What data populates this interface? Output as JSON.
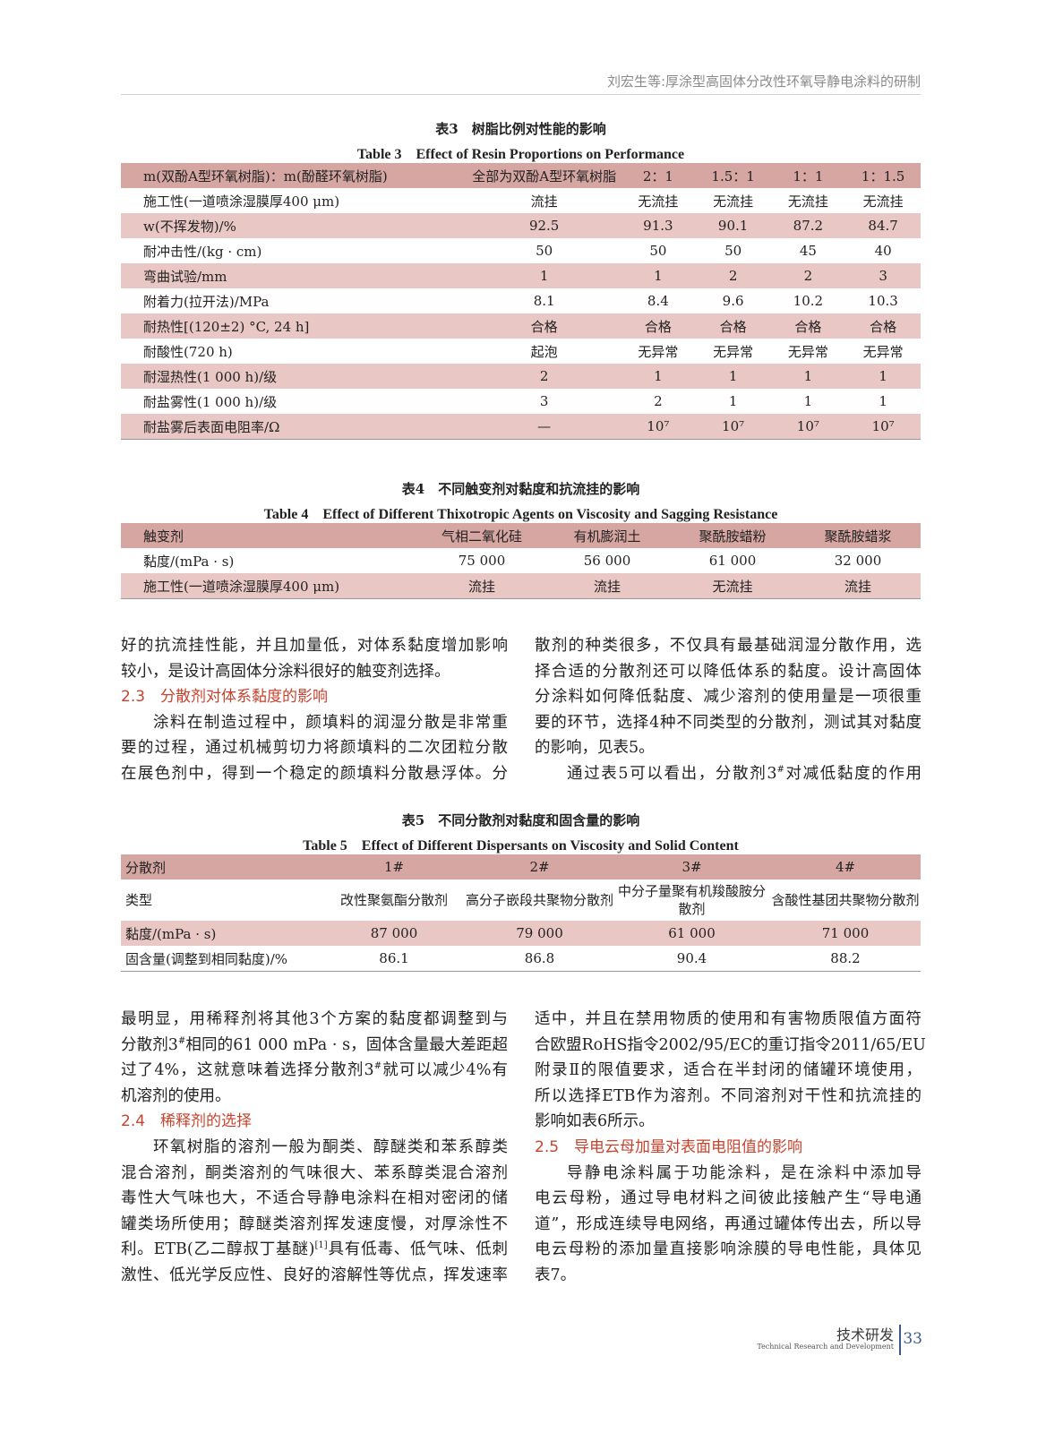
{
  "header": {
    "running_title": "刘宏生等:厚涂型高固体分改性环氧导静电涂料的研制"
  },
  "table3": {
    "title_zh": "表3　树脂比例对性能的影响",
    "title_en": "Table 3　Effect of Resin Proportions on Performance",
    "rows": [
      [
        "m(双酚A型环氧树脂)：m(酚醛环氧树脂)",
        "全部为双酚A型环氧树脂",
        "2：1",
        "1.5：1",
        "1：1",
        "1：1.5"
      ],
      [
        "施工性(一道喷涂湿膜厚400 μm)",
        "流挂",
        "无流挂",
        "无流挂",
        "无流挂",
        "无流挂"
      ],
      [
        "w(不挥发物)/%",
        "92.5",
        "91.3",
        "90.1",
        "87.2",
        "84.7"
      ],
      [
        "耐冲击性/(kg · cm)",
        "50",
        "50",
        "50",
        "45",
        "40"
      ],
      [
        "弯曲试验/mm",
        "1",
        "1",
        "2",
        "2",
        "3"
      ],
      [
        "附着力(拉开法)/MPa",
        "8.1",
        "8.4",
        "9.6",
        "10.2",
        "10.3"
      ],
      [
        "耐热性[(120±2) °C, 24 h]",
        "合格",
        "合格",
        "合格",
        "合格",
        "合格"
      ],
      [
        "耐酸性(720 h)",
        "起泡",
        "无异常",
        "无异常",
        "无异常",
        "无异常"
      ],
      [
        "耐湿热性(1 000 h)/级",
        "2",
        "1",
        "1",
        "1",
        "1"
      ],
      [
        "耐盐雾性(1 000 h)/级",
        "3",
        "2",
        "1",
        "1",
        "1"
      ],
      [
        "耐盐雾后表面电阻率/Ω",
        "—",
        "10⁷",
        "10⁷",
        "10⁷",
        "10⁷"
      ]
    ]
  },
  "table4": {
    "title_zh": "表4　不同触变剂对黏度和抗流挂的影响",
    "title_en": "Table 4　Effect of Different Thixotropic Agents on Viscosity and Sagging Resistance",
    "rows": [
      [
        "触变剂",
        "气相二氧化硅",
        "有机膨润土",
        "聚酰胺蜡粉",
        "聚酰胺蜡浆"
      ],
      [
        "黏度/(mPa · s)",
        "75 000",
        "56 000",
        "61 000",
        "32 000"
      ],
      [
        "施工性(一道喷涂湿膜厚400 μm)",
        "流挂",
        "流挂",
        "无流挂",
        "流挂"
      ]
    ]
  },
  "table5": {
    "title_zh": "表5　不同分散剂对黏度和固含量的影响",
    "title_en": "Table 5　Effect of Different Dispersants on Viscosity and Solid Content",
    "rows": [
      [
        "分散剂",
        "1#",
        "2#",
        "3#",
        "4#"
      ],
      [
        "类型",
        "改性聚氨酯分散剂",
        "高分子嵌段共聚物分散剂",
        "中分子量聚有机羧酸胺分散剂",
        "含酸性基团共聚物分散剂"
      ],
      [
        "黏度/(mPa · s)",
        "87 000",
        "79 000",
        "61 000",
        "71 000"
      ],
      [
        "固含量(调整到相同黏度)/%",
        "86.1",
        "86.8",
        "90.4",
        "88.2"
      ]
    ]
  },
  "text_upper_left": [
    {
      "t": "好的抗流挂性能，并且加量低，对体系黏度增加影响"
    },
    {
      "t": "较小，是设计高固体分涂料很好的触变剂选择。",
      "last": true
    },
    {
      "t": "2.3　分散剂对体系黏度的影响",
      "sec": true
    },
    {
      "t": "涂料在制造过程中，颜填料的润湿分散是非常重",
      "ind": true
    },
    {
      "t": "要的过程，通过机械剪切力将颜填料的二次团粒分散"
    },
    {
      "t": "在展色剂中，得到一个稳定的颜填料分散悬浮体。分"
    }
  ],
  "text_upper_right": [
    {
      "t": "散剂的种类很多，不仅具有最基础润湿分散作用，选"
    },
    {
      "t": "择合适的分散剂还可以降低体系的黏度。设计高固体"
    },
    {
      "t": "分涂料如何降低黏度、减少溶剂的使用量是一项很重"
    },
    {
      "t": "要的环节，选择4种不同类型的分散剂，测试其对黏度"
    },
    {
      "t": "的影响，见表5。",
      "last": true
    },
    {
      "t": "通过表5可以看出，分散剂3",
      "sup": "#",
      "t2": "对减低黏度的作用",
      "ind": true
    }
  ],
  "text_lower_left": [
    {
      "t": "最明显，用稀释剂将其他3个方案的黏度都调整到与"
    },
    {
      "t": "分散剂3",
      "sup": "#",
      "t2": "相同的61 000 mPa · s，固体含量最大差距超"
    },
    {
      "t": "过了4%，这就意味着选择分散剂3",
      "sup": "#",
      "t2": "就可以减少4%有"
    },
    {
      "t": "机溶剂的使用。",
      "last": true
    },
    {
      "t": "2.4　稀释剂的选择",
      "sec": true
    },
    {
      "t": "环氧树脂的溶剂一般为酮类、醇醚类和苯系醇类",
      "ind": true
    },
    {
      "t": "混合溶剂，酮类溶剂的气味很大、苯系醇类混合溶剂"
    },
    {
      "t": "毒性大气味也大，不适合导静电涂料在相对密闭的储"
    },
    {
      "t": "罐类场所使用；醇醚类溶剂挥发速度慢，对厚涂性不"
    },
    {
      "t": "利。ETB(乙二醇叔丁基醚)",
      "sup": "[1]",
      "t2": "具有低毒、低气味、低刺"
    },
    {
      "t": "激性、低光学反应性、良好的溶解性等优点，挥发速率"
    }
  ],
  "text_lower_right": [
    {
      "t": "适中，并且在禁用物质的使用和有害物质限值方面符"
    },
    {
      "t": "合欧盟RoHS指令2002/95/EC的重订指令2011/65/EU"
    },
    {
      "t": "附录Ⅱ的限值要求，适合在半封闭的储罐环境使用，"
    },
    {
      "t": "所以选择ETB作为溶剂。不同溶剂对干性和抗流挂的"
    },
    {
      "t": "影响如表6所示。",
      "last": true
    },
    {
      "t": "2.5　导电云母加量对表面电阻值的影响",
      "sec": true
    },
    {
      "t": "导静电涂料属于功能涂料，是在涂料中添加导",
      "ind": true
    },
    {
      "t": "电云母粉，通过导电材料之间彼此接触产生“导电通"
    },
    {
      "t": "道”，形成连续导电网络，再通过罐体传出去，所以导"
    },
    {
      "t": "电云母粉的添加量直接影响涂膜的导电性能，具体见"
    },
    {
      "t": "表7。",
      "last": true
    }
  ],
  "footer": {
    "section_zh": "技术研发",
    "section_en": "Technical Research and Development",
    "page_number": "33"
  },
  "colors": {
    "header_row": "#d6a6a2",
    "alt_row": "#e8c7c4",
    "section_heading": "#c7432e",
    "page_number": "#3b5b8a"
  }
}
